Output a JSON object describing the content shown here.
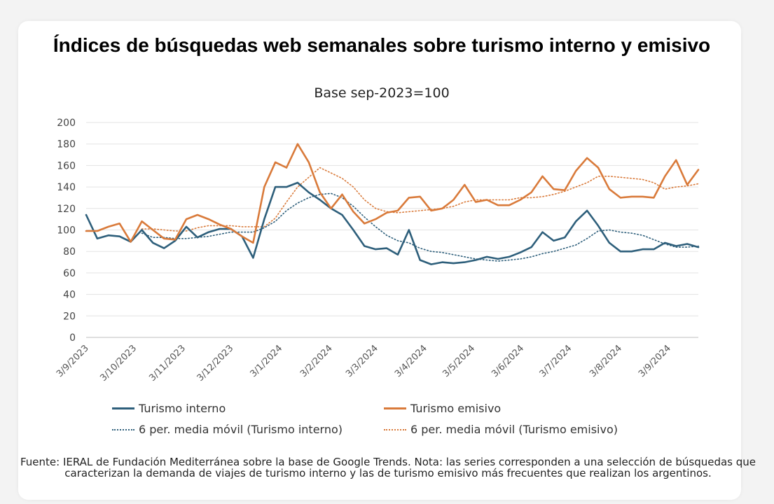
{
  "card": {
    "title": "Índices de búsquedas web semanales sobre turismo interno y emisivo",
    "subtitle": "Base sep-2023=100",
    "source": "Fuente: IERAL de Fundación Mediterránea sobre la base de Google Trends. Nota: las series corresponden a una selección de búsquedas que caracterizan la demanda de viajes de turismo interno y las de turismo emisivo más frecuentes que realizan los argentinos."
  },
  "chart_data": {
    "type": "line",
    "title": "Índices de búsquedas web semanales sobre turismo interno y emisivo",
    "subtitle": "Base sep-2023=100",
    "ylim": [
      0,
      200
    ],
    "yticks": [
      0,
      20,
      40,
      60,
      80,
      100,
      120,
      140,
      160,
      180,
      200
    ],
    "grid": true,
    "legend_position": "bottom",
    "x_tick_labels": [
      "3/9/2023",
      "3/10/2023",
      "3/11/2023",
      "3/12/2023",
      "3/1/2024",
      "3/2/2024",
      "3/3/2024",
      "3/4/2024",
      "3/5/2024",
      "3/6/2024",
      "3/7/2024",
      "3/8/2024",
      "3/9/2024"
    ],
    "x_tick_weeks": [
      0,
      4.3,
      8.7,
      13,
      17.4,
      21.9,
      26,
      30.4,
      34.7,
      39.1,
      43.4,
      47.9,
      52.3
    ],
    "week_count": 56,
    "colors": {
      "interno": "#2e5f7b",
      "emisivo": "#d97a3a"
    },
    "series": [
      {
        "name": "Turismo interno",
        "style": "solid",
        "color": "#2e5f7b",
        "values": [
          114,
          92,
          95,
          94,
          89,
          100,
          88,
          83,
          90,
          103,
          93,
          98,
          101,
          101,
          94,
          74,
          110,
          140,
          140,
          144,
          135,
          128,
          120,
          114,
          100,
          85,
          82,
          83,
          77,
          100,
          72,
          68,
          70,
          69,
          70,
          72,
          75,
          73,
          75,
          79,
          84,
          98,
          90,
          93,
          108,
          118,
          104,
          88,
          80,
          80,
          82,
          82,
          88,
          85,
          87,
          84
        ]
      },
      {
        "name": "Turismo emisivo",
        "style": "solid",
        "color": "#d97a3a",
        "values": [
          99,
          99,
          103,
          106,
          89,
          108,
          100,
          92,
          91,
          110,
          114,
          110,
          105,
          101,
          94,
          88,
          140,
          163,
          158,
          180,
          163,
          135,
          120,
          133,
          117,
          106,
          110,
          116,
          118,
          130,
          131,
          118,
          120,
          128,
          142,
          126,
          128,
          123,
          123,
          128,
          135,
          150,
          138,
          137,
          155,
          167,
          158,
          138,
          130,
          131,
          131,
          130,
          150,
          165,
          142,
          156
        ]
      },
      {
        "name": "6 per. media móvil (Turismo interno)",
        "style": "dotted",
        "color": "#2e5f7b",
        "values": [
          null,
          null,
          null,
          null,
          null,
          97,
          93,
          93,
          92,
          92,
          93,
          94,
          96,
          98,
          98,
          98,
          102,
          108,
          118,
          125,
          130,
          133,
          134,
          130,
          122,
          112,
          103,
          95,
          90,
          88,
          83,
          80,
          79,
          77,
          75,
          73,
          72,
          71,
          72,
          73,
          75,
          78,
          80,
          83,
          86,
          92,
          99,
          100,
          98,
          97,
          95,
          91,
          87,
          84,
          84,
          85
        ]
      },
      {
        "name": "6 per. media móvil (Turismo emisivo)",
        "style": "dotted",
        "color": "#d97a3a",
        "values": [
          null,
          null,
          null,
          null,
          null,
          101,
          101,
          100,
          99,
          99,
          102,
          104,
          104,
          104,
          103,
          103,
          103,
          111,
          126,
          140,
          149,
          158,
          153,
          148,
          140,
          128,
          120,
          117,
          116,
          117,
          118,
          119,
          120,
          122,
          126,
          128,
          128,
          128,
          128,
          130,
          130,
          131,
          133,
          136,
          140,
          144,
          150,
          150,
          149,
          148,
          147,
          144,
          138,
          140,
          141,
          143
        ]
      }
    ]
  }
}
